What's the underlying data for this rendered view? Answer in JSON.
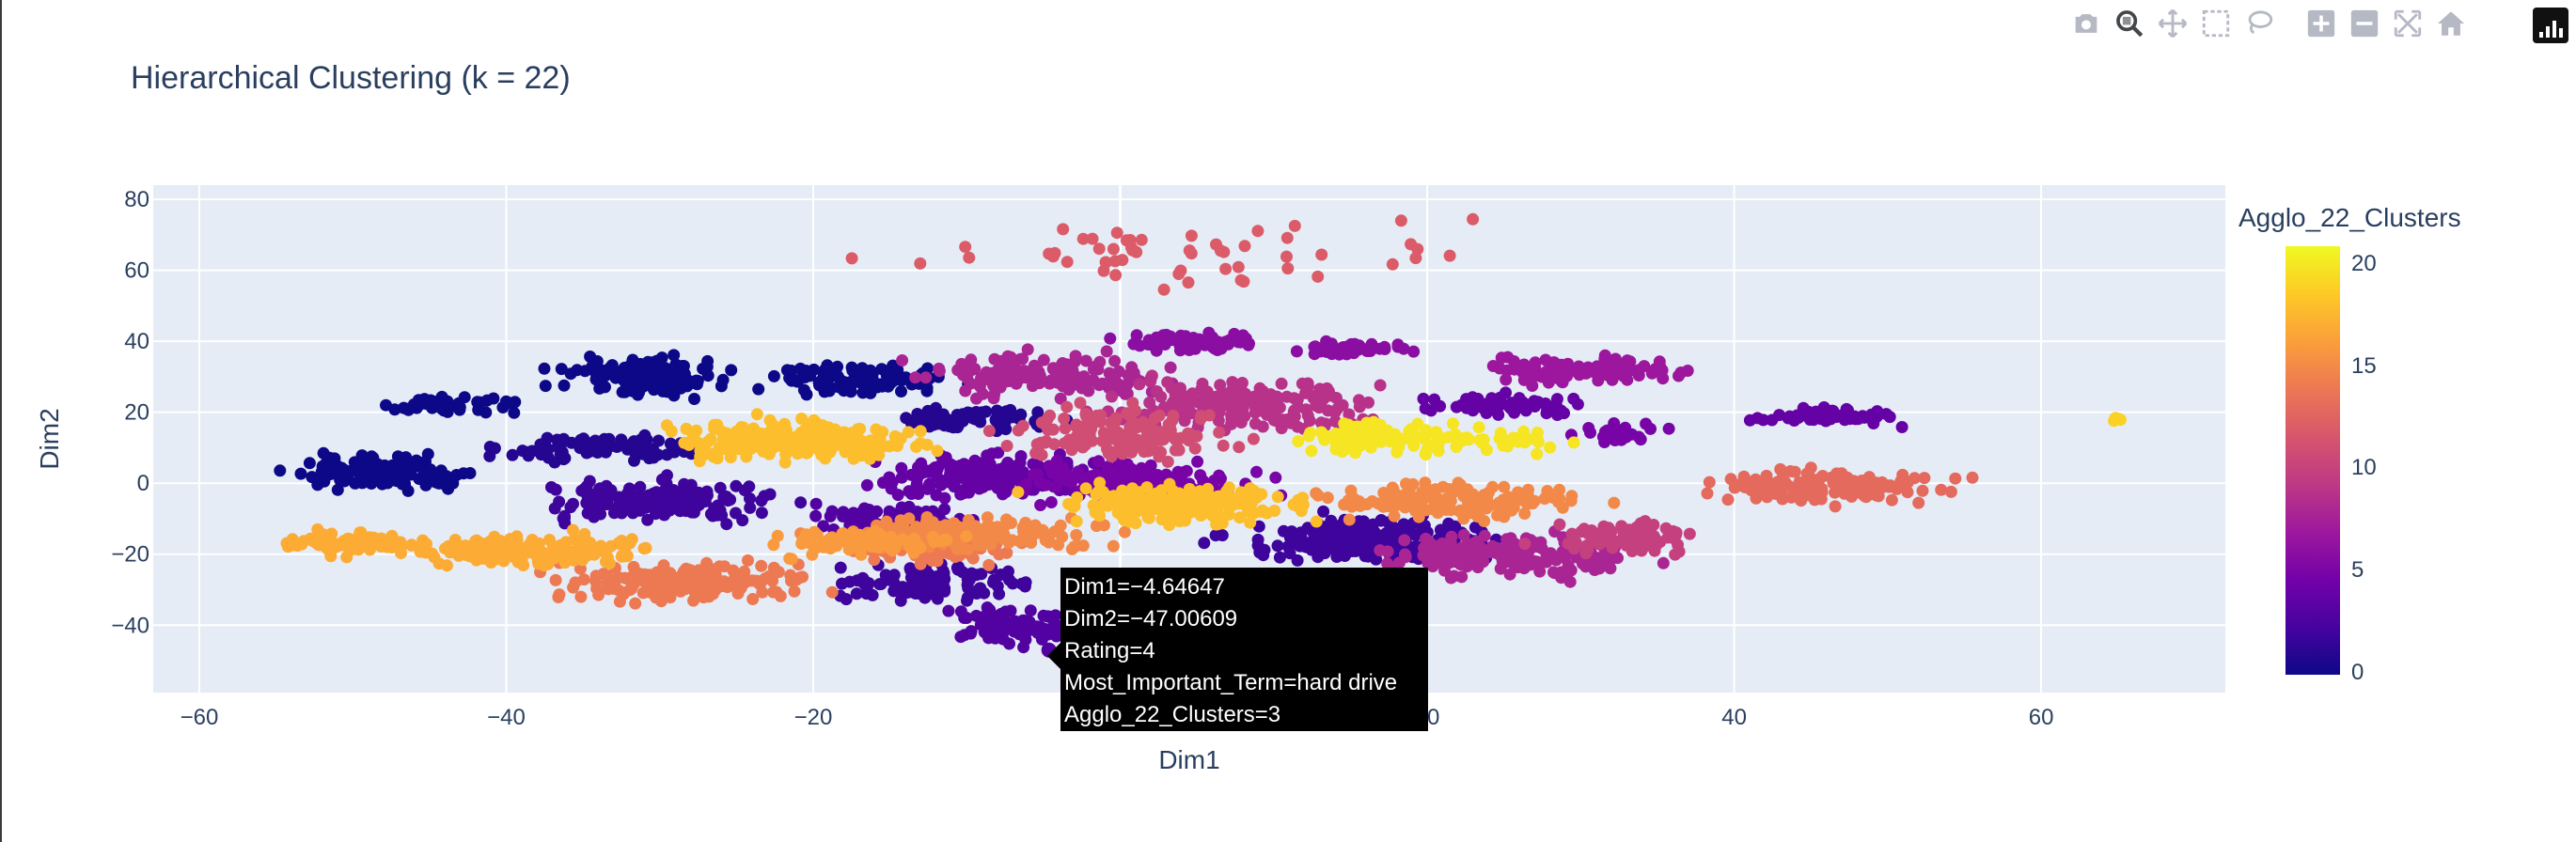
{
  "title": "Hierarchical Clustering (k = 22)",
  "modebar": {
    "buttons": [
      "camera-icon",
      "zoom-icon",
      "pan-icon",
      "box-select-icon",
      "lasso-icon",
      "zoom-in-icon",
      "zoom-out-icon",
      "autoscale-icon",
      "home-icon"
    ],
    "active": "zoom-icon"
  },
  "colorbar": {
    "title": "Agglo_22_Clusters",
    "ticks": [
      "0",
      "5",
      "10",
      "15",
      "20"
    ],
    "range": [
      0,
      21
    ],
    "colorscale": [
      "#0d0887",
      "#46039f",
      "#7201a8",
      "#9c179e",
      "#bd3786",
      "#d8576b",
      "#ed7953",
      "#fb9f3a",
      "#fdca26",
      "#f0f921"
    ]
  },
  "tooltip": {
    "dim1": "Dim1=−4.64647",
    "dim2": "Dim2=−47.00609",
    "rating": "Rating=4",
    "term": "Most_Important_Term=hard drive",
    "cluster": "Agglo_22_Clusters=3"
  },
  "chart_data": {
    "type": "scatter",
    "title": "Hierarchical Clustering (k = 22)",
    "xlabel": "Dim1",
    "ylabel": "Dim2",
    "xlim": [
      -63,
      72
    ],
    "ylim": [
      -59,
      84
    ],
    "xticks": [
      -60,
      -40,
      -20,
      0,
      20,
      40,
      60
    ],
    "xtick_labels": [
      "−60",
      "−40",
      "−20",
      "0",
      "20",
      "40",
      "60"
    ],
    "yticks": [
      -40,
      -20,
      0,
      20,
      40,
      60,
      80
    ],
    "ytick_labels": [
      "−40",
      "−20",
      "0",
      "20",
      "40",
      "60",
      "80"
    ],
    "grid": true,
    "color_by": "Agglo_22_Clusters",
    "colorscale": "plasma",
    "clusters": [
      {
        "cluster": 0,
        "center": [
          -31,
          30
        ],
        "spread": [
          3.5,
          3.5
        ],
        "n": 120
      },
      {
        "cluster": 0,
        "center": [
          -48,
          3
        ],
        "spread": [
          3.8,
          3.0
        ],
        "n": 130
      },
      {
        "cluster": 0,
        "center": [
          -44,
          22
        ],
        "spread": [
          3.0,
          1.5
        ],
        "n": 50
      },
      {
        "cluster": 0,
        "center": [
          -17,
          29
        ],
        "spread": [
          4.0,
          3.0
        ],
        "n": 120
      },
      {
        "cluster": 1,
        "center": [
          -34,
          10
        ],
        "spread": [
          4.0,
          2.5
        ],
        "n": 90
      },
      {
        "cluster": 1,
        "center": [
          -9,
          18
        ],
        "spread": [
          3.5,
          2.5
        ],
        "n": 70
      },
      {
        "cluster": 2,
        "center": [
          -30,
          -5
        ],
        "spread": [
          5.0,
          3.5
        ],
        "n": 180
      },
      {
        "cluster": 2,
        "center": [
          -12,
          -28
        ],
        "spread": [
          4.0,
          3.5
        ],
        "n": 110
      },
      {
        "cluster": 2,
        "center": [
          16,
          -16
        ],
        "spread": [
          5.5,
          4.0
        ],
        "n": 220
      },
      {
        "cluster": 3,
        "center": [
          -15,
          -10
        ],
        "spread": [
          3.5,
          3.0
        ],
        "n": 80
      },
      {
        "cluster": 3,
        "center": [
          -7,
          -40
        ],
        "spread": [
          3.0,
          3.5
        ],
        "n": 80
      },
      {
        "cluster": 4,
        "center": [
          -8,
          2
        ],
        "spread": [
          5.5,
          4.0
        ],
        "n": 200
      },
      {
        "cluster": 4,
        "center": [
          25,
          22
        ],
        "spread": [
          3.5,
          2.0
        ],
        "n": 70
      },
      {
        "cluster": 4,
        "center": [
          46,
          19
        ],
        "spread": [
          3.0,
          1.5
        ],
        "n": 50
      },
      {
        "cluster": 5,
        "center": [
          1,
          0
        ],
        "spread": [
          4.5,
          4.0
        ],
        "n": 160
      },
      {
        "cluster": 5,
        "center": [
          32,
          14
        ],
        "spread": [
          2.0,
          1.5
        ],
        "n": 30
      },
      {
        "cluster": 6,
        "center": [
          5,
          40
        ],
        "spread": [
          3.0,
          2.0
        ],
        "n": 70
      },
      {
        "cluster": 6,
        "center": [
          15,
          38
        ],
        "spread": [
          2.5,
          1.5
        ],
        "n": 40
      },
      {
        "cluster": 7,
        "center": [
          30,
          32
        ],
        "spread": [
          4.0,
          2.5
        ],
        "n": 110
      },
      {
        "cluster": 8,
        "center": [
          26,
          -20
        ],
        "spread": [
          5.5,
          4.0
        ],
        "n": 200
      },
      {
        "cluster": 8,
        "center": [
          -5,
          30
        ],
        "spread": [
          5.0,
          4.0
        ],
        "n": 150
      },
      {
        "cluster": 9,
        "center": [
          8,
          22
        ],
        "spread": [
          5.5,
          5.0
        ],
        "n": 180
      },
      {
        "cluster": 10,
        "center": [
          33,
          -15
        ],
        "spread": [
          3.5,
          3.0
        ],
        "n": 80
      },
      {
        "cluster": 11,
        "center": [
          0,
          14
        ],
        "spread": [
          4.5,
          5.0
        ],
        "n": 150
      },
      {
        "cluster": 12,
        "center": [
          4,
          65
        ],
        "spread": [
          13.0,
          6.0
        ],
        "n": 55
      },
      {
        "cluster": 13,
        "center": [
          46,
          -1
        ],
        "spread": [
          5.0,
          3.0
        ],
        "n": 150
      },
      {
        "cluster": 14,
        "center": [
          -28,
          -28
        ],
        "spread": [
          5.5,
          3.5
        ],
        "n": 170
      },
      {
        "cluster": 14,
        "center": [
          -12,
          -19
        ],
        "spread": [
          3.5,
          2.5
        ],
        "n": 70
      },
      {
        "cluster": 15,
        "center": [
          22,
          -5
        ],
        "spread": [
          6.0,
          3.5
        ],
        "n": 150
      },
      {
        "cluster": 15,
        "center": [
          -10,
          -14
        ],
        "spread": [
          6.0,
          3.0
        ],
        "n": 160
      },
      {
        "cluster": 16,
        "center": [
          -17,
          -17
        ],
        "spread": [
          4.0,
          2.5
        ],
        "n": 80
      },
      {
        "cluster": 17,
        "center": [
          -50,
          -17
        ],
        "spread": [
          3.5,
          2.0
        ],
        "n": 80
      },
      {
        "cluster": 17,
        "center": [
          -38,
          -19
        ],
        "spread": [
          5.0,
          3.0
        ],
        "n": 160
      },
      {
        "cluster": 18,
        "center": [
          -21,
          12
        ],
        "spread": [
          5.5,
          4.0
        ],
        "n": 220
      },
      {
        "cluster": 18,
        "center": [
          4,
          -6
        ],
        "spread": [
          5.0,
          3.5
        ],
        "n": 200
      },
      {
        "cluster": 19,
        "center": [
          2,
          -39
        ],
        "spread": [
          2.0,
          1.0
        ],
        "n": 25
      },
      {
        "cluster": 19,
        "center": [
          65,
          18
        ],
        "spread": [
          0.4,
          0.4
        ],
        "n": 6
      },
      {
        "cluster": 20,
        "center": [
          17,
          13
        ],
        "spread": [
          3.5,
          3.0
        ],
        "n": 90
      },
      {
        "cluster": 20,
        "center": [
          25,
          12
        ],
        "spread": [
          2.5,
          2.0
        ],
        "n": 40
      }
    ],
    "hovered_point": {
      "x": -4.64647,
      "y": -47.00609,
      "Rating": 4,
      "Most_Important_Term": "hard drive",
      "Agglo_22_Clusters": 3
    }
  }
}
